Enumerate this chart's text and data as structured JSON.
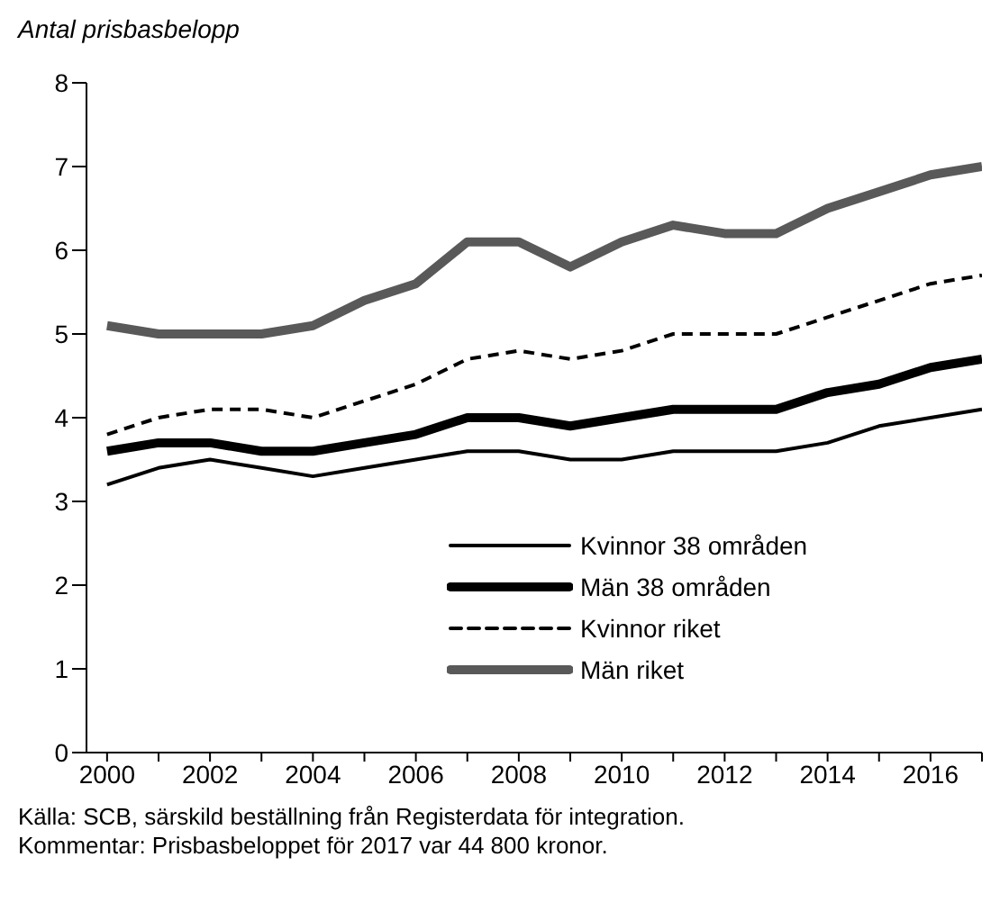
{
  "chart_data": {
    "type": "line",
    "ylabel": "Antal prisbasbelopp",
    "x": [
      2000,
      2001,
      2002,
      2003,
      2004,
      2005,
      2006,
      2007,
      2008,
      2009,
      2010,
      2011,
      2012,
      2013,
      2014,
      2015,
      2016,
      2017
    ],
    "series": [
      {
        "name": "Kvinnor 38 områden",
        "color": "#000000",
        "line_style": "solid",
        "values": [
          3.2,
          3.4,
          3.5,
          3.4,
          3.3,
          3.4,
          3.5,
          3.6,
          3.6,
          3.5,
          3.5,
          3.6,
          3.6,
          3.6,
          3.7,
          3.9,
          4.0,
          4.1
        ]
      },
      {
        "name": "Män 38 områden",
        "color": "#000000",
        "line_style": "solid",
        "values": [
          3.6,
          3.7,
          3.7,
          3.6,
          3.6,
          3.7,
          3.8,
          4.0,
          4.0,
          3.9,
          4.0,
          4.1,
          4.1,
          4.1,
          4.3,
          4.4,
          4.6,
          4.7
        ]
      },
      {
        "name": "Kvinnor riket",
        "color": "#000000",
        "line_style": "dashed",
        "values": [
          3.8,
          4.0,
          4.1,
          4.1,
          4.0,
          4.2,
          4.4,
          4.7,
          4.8,
          4.7,
          4.8,
          5.0,
          5.0,
          5.0,
          5.2,
          5.4,
          5.6,
          5.7
        ]
      },
      {
        "name": "Män riket",
        "color": "#595959",
        "line_style": "solid",
        "values": [
          5.1,
          5.0,
          5.0,
          5.0,
          5.1,
          5.4,
          5.6,
          6.1,
          6.1,
          5.8,
          6.1,
          6.3,
          6.2,
          6.2,
          6.5,
          6.7,
          6.9,
          7.0
        ]
      }
    ],
    "xlim": [
      1999.6,
      2017
    ],
    "xticks": [
      2000,
      {
        "value": 2001,
        "label": null
      },
      2002,
      {
        "value": 2003,
        "label": null
      },
      2004,
      {
        "value": 2005,
        "label": null
      },
      2006,
      {
        "value": 2007,
        "label": null
      },
      2008,
      {
        "value": 2009,
        "label": null
      },
      2010,
      {
        "value": 2011,
        "label": null
      },
      2012,
      {
        "value": 2013,
        "label": null
      },
      2014,
      {
        "value": 2015,
        "label": null
      },
      2016,
      {
        "value": 2017,
        "label": null
      }
    ],
    "ylim": [
      0,
      8
    ],
    "yticks": [
      0,
      1,
      2,
      3,
      4,
      5,
      6,
      7,
      8
    ],
    "grid": false,
    "legend": "bottom",
    "marker": "none",
    "annotations": [
      "Källa: SCB, särskild beställning från Registerdata för integration.",
      "Kommentar: Prisbasbeloppet för 2017 var 44 800 kronor."
    ]
  }
}
